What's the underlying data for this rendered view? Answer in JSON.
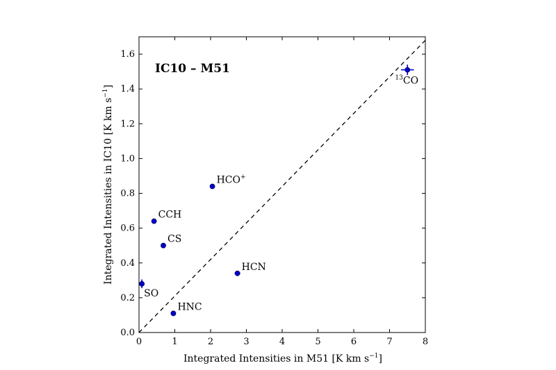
{
  "chart_data": {
    "type": "scatter",
    "title": "IC10 – M51",
    "xlabel": "Integrated Intensities in M51 [K km s",
    "xlabel_sup": "−1",
    "xlabel_end": "]",
    "ylabel": "Integrated Intensities in IC10 [K km s",
    "ylabel_sup": "−1",
    "ylabel_end": "]",
    "xlim": [
      0,
      8
    ],
    "ylim": [
      0,
      1.7
    ],
    "x_ticks": [
      "0",
      "1",
      "2",
      "3",
      "4",
      "5",
      "6",
      "7",
      "8"
    ],
    "y_ticks": [
      "0.0",
      "0.2",
      "0.4",
      "0.6",
      "0.8",
      "1.0",
      "1.2",
      "1.4",
      "1.6"
    ],
    "grid": false,
    "point_color": "#0000cc",
    "reference_line": {
      "style": "dashed",
      "points": [
        [
          0,
          0
        ],
        [
          8,
          1.68
        ]
      ]
    },
    "points": [
      {
        "label": "HCO",
        "label_sup": "+",
        "label_pre": "",
        "x": 2.05,
        "y": 0.84,
        "xerr": 0.06,
        "yerr": 0.01,
        "anchor": "upper-right"
      },
      {
        "label": "CCH",
        "label_sup": "",
        "label_pre": "",
        "x": 0.42,
        "y": 0.64,
        "xerr": 0.06,
        "yerr": 0.01,
        "anchor": "upper-right"
      },
      {
        "label": "CS",
        "label_sup": "",
        "label_pre": "",
        "x": 0.68,
        "y": 0.5,
        "xerr": 0.06,
        "yerr": 0.01,
        "anchor": "upper-right"
      },
      {
        "label": "HCN",
        "label_sup": "",
        "label_pre": "",
        "x": 2.75,
        "y": 0.34,
        "xerr": 0.08,
        "yerr": 0.01,
        "anchor": "upper-right"
      },
      {
        "label": "SO",
        "label_sup": "",
        "label_pre": "",
        "x": 0.08,
        "y": 0.28,
        "xerr": 0.04,
        "yerr": 0.025,
        "anchor": "lower-right"
      },
      {
        "label": "HNC",
        "label_sup": "",
        "label_pre": "",
        "x": 0.96,
        "y": 0.11,
        "xerr": 0.04,
        "yerr": 0.005,
        "anchor": "upper-right"
      },
      {
        "label": "CO",
        "label_sup": "",
        "label_pre": "13",
        "x": 7.5,
        "y": 1.51,
        "xerr": 0.18,
        "yerr": 0.03,
        "anchor": "lower-left"
      }
    ]
  }
}
